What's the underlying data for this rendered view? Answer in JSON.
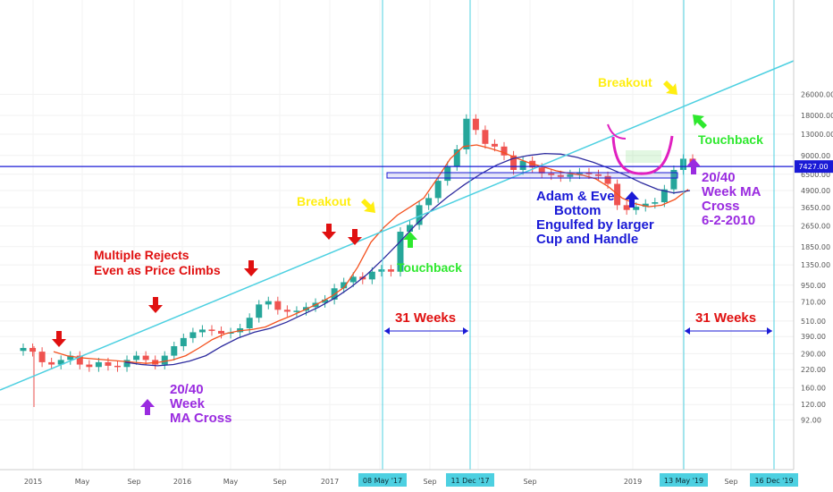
{
  "chart_data": {
    "type": "candlestick",
    "title": "",
    "y_scale": "log",
    "ylim": [
      85,
      27000
    ],
    "x_ticks": [
      "2015",
      "May",
      "Sep",
      "2016",
      "May",
      "Sep",
      "2017",
      "May",
      "Sep",
      "May",
      "Sep",
      "2019",
      "May",
      "Sep"
    ],
    "y_ticks": [
      "26000.00",
      "18000.00",
      "13000.00",
      "9000.00",
      "6500.00",
      "4900.00",
      "3650.00",
      "2650.00",
      "1850.00",
      "1350.00",
      "950.00",
      "710.00",
      "510.00",
      "390.00",
      "290.00",
      "220.00",
      "160.00",
      "120.00",
      "92.00"
    ],
    "price_label": "7427.00",
    "price_level": 7427,
    "date_labels": [
      "08 May '17",
      "11 Dec '17",
      "13 May '19",
      "16 Dec '19"
    ],
    "series": [
      {
        "name": "price",
        "values": [
          320,
          300,
          250,
          240,
          260,
          280,
          240,
          230,
          250,
          235,
          230,
          260,
          280,
          260,
          240,
          280,
          330,
          380,
          420,
          440,
          430,
          410,
          420,
          450,
          540,
          680,
          720,
          620,
          600,
          610,
          650,
          700,
          740,
          900,
          1000,
          1100,
          1050,
          1200,
          1250,
          1200,
          2400,
          2700,
          3800,
          4300,
          5800,
          7500,
          10000,
          17000,
          14000,
          11000,
          10500,
          9000,
          7000,
          8200,
          7300,
          6600,
          6400,
          6200,
          6500,
          6700,
          6500,
          6300,
          5500,
          3800,
          3500,
          3700,
          3900,
          4000,
          5000,
          7000,
          8500,
          7900
        ]
      },
      {
        "name": "ma20",
        "values": [
          300,
          280,
          270,
          265,
          260,
          255,
          250,
          245,
          250,
          260,
          280,
          320,
          370,
          410,
          430,
          440,
          460,
          510,
          560,
          620,
          690,
          780,
          920,
          1300,
          2000,
          2600,
          3200,
          3700,
          4300,
          6000,
          8500,
          10500,
          10800,
          10200,
          9500,
          8600,
          7900,
          7400,
          6900,
          6600,
          6400,
          6000,
          5200,
          4300,
          3900,
          3700,
          3800,
          4200,
          5000
        ]
      },
      {
        "name": "ma40",
        "values": [
          250,
          240,
          235,
          240,
          255,
          280,
          330,
          380,
          420,
          450,
          500,
          570,
          650,
          760,
          920,
          1150,
          1500,
          2000,
          2700,
          3500,
          4400,
          5400,
          6500,
          7600,
          8500,
          9000,
          9300,
          9200,
          8700,
          8000,
          7200,
          6400,
          5600,
          5000,
          4700,
          4900
        ]
      }
    ]
  },
  "annotations": {
    "multiple_rejects": [
      "Multiple Rejects",
      "Even as Price Climbs"
    ],
    "ma_cross_left": [
      "20/40",
      "Week",
      "MA Cross"
    ],
    "breakout_left": "Breakout",
    "touchback_left": "Touchback",
    "weeks_left": "31 Weeks",
    "adam_eve": [
      "Adam & Eve",
      "Bottom",
      "Engulfed by larger",
      "Cup and Handle"
    ],
    "breakout_right": "Breakout",
    "touchback_right": "Touchback",
    "ma_cross_right": [
      "20/40",
      "Week MA",
      "Cross",
      "6-2-2010"
    ],
    "weeks_right": "31 Weeks"
  },
  "colors": {
    "up_candle": "#26a69a",
    "down_candle": "#ef5350",
    "ma20": "#f4511e",
    "ma40": "#2c2a9e",
    "trendline": "#4dd0e1",
    "price_line": "#1a1ad6",
    "vertical_lines": "#4dd0e1",
    "red_text": "#e01010",
    "purple_text": "#9a2be0",
    "yellow_text": "#ffee11",
    "green_text": "#2ee82e",
    "blue_text": "#1a1ad6",
    "magenta_cup": "#e020c0"
  }
}
